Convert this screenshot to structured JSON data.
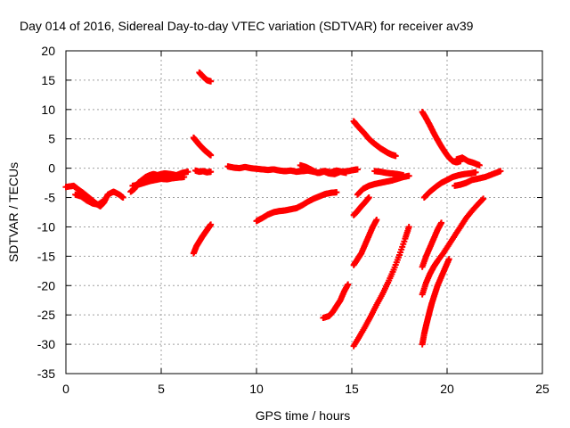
{
  "chart_data": {
    "type": "scatter",
    "title": "Day 014 of 2016, Sidereal Day-to-day VTEC variation (SDTVAR) for receiver av39",
    "xlabel": "GPS time / hours",
    "ylabel": "SDTVAR / TECUs",
    "xlim": [
      0,
      25
    ],
    "ylim": [
      -35,
      20
    ],
    "xticks": [
      0,
      5,
      10,
      15,
      20,
      25
    ],
    "yticks": [
      -35,
      -30,
      -25,
      -20,
      -15,
      -10,
      -5,
      0,
      5,
      10,
      15,
      20
    ],
    "grid": true,
    "marker": "plus",
    "color": "#ff0000",
    "segments": [
      {
        "x": [
          0.0,
          0.4,
          0.6,
          0.9,
          1.2,
          1.5,
          1.8,
          2.0,
          2.2,
          2.5,
          2.8,
          3.0
        ],
        "y": [
          -3.2,
          -3.0,
          -3.5,
          -4.2,
          -5.0,
          -5.8,
          -6.5,
          -5.8,
          -4.5,
          -4.0,
          -4.5,
          -5.0
        ]
      },
      {
        "x": [
          0.5,
          0.8,
          1.1,
          1.4,
          1.7,
          2.0
        ],
        "y": [
          -4.5,
          -4.8,
          -5.5,
          -6.0,
          -6.2,
          -5.5
        ]
      },
      {
        "x": [
          3.4,
          3.6,
          3.8,
          4.0,
          4.2,
          4.4,
          4.6,
          4.8,
          5.0,
          5.2,
          5.5,
          5.8,
          6.1,
          6.4
        ],
        "y": [
          -4.0,
          -3.5,
          -2.5,
          -2.0,
          -1.5,
          -1.2,
          -1.0,
          -1.2,
          -1.0,
          -0.9,
          -1.0,
          -1.2,
          -0.8,
          -0.6
        ]
      },
      {
        "x": [
          3.5,
          3.8,
          4.1,
          4.4,
          4.7,
          5.0,
          5.3,
          5.6,
          5.9,
          6.2
        ],
        "y": [
          -3.0,
          -2.8,
          -2.5,
          -2.2,
          -2.0,
          -1.8,
          -1.9,
          -1.7,
          -1.6,
          -1.5
        ]
      },
      {
        "x": [
          6.7,
          6.85,
          7.0,
          7.15,
          7.3,
          7.45,
          7.6
        ],
        "y": [
          5.2,
          4.6,
          4.0,
          3.5,
          3.0,
          2.6,
          2.2
        ]
      },
      {
        "x": [
          6.8,
          7.0,
          7.2,
          7.4,
          7.6
        ],
        "y": [
          -0.4,
          -0.6,
          -0.5,
          -0.7,
          -0.6
        ]
      },
      {
        "x": [
          6.7,
          6.85,
          7.0,
          7.15,
          7.3,
          7.45,
          7.6
        ],
        "y": [
          -14.5,
          -13.3,
          -12.5,
          -11.7,
          -11.0,
          -10.3,
          -9.6
        ]
      },
      {
        "x": [
          7.0,
          7.2,
          7.4,
          7.6
        ],
        "y": [
          16.3,
          15.6,
          15.0,
          14.8
        ]
      },
      {
        "x": [
          8.5,
          8.8,
          9.1,
          9.4,
          9.7,
          10.0,
          10.3,
          10.6,
          10.9,
          11.2,
          11.5,
          11.8,
          12.1,
          12.4,
          12.7,
          13.0,
          13.3,
          13.6,
          13.9,
          14.2,
          14.5,
          14.8,
          15.1,
          15.3
        ],
        "y": [
          0.3,
          0.1,
          0.0,
          0.2,
          0.0,
          -0.1,
          -0.2,
          -0.3,
          -0.2,
          -0.4,
          -0.5,
          -0.4,
          -0.6,
          -0.5,
          -0.4,
          -0.6,
          -0.8,
          -0.5,
          -0.7,
          -0.4,
          -0.6,
          -0.5,
          -0.3,
          -0.2
        ]
      },
      {
        "x": [
          12.3,
          12.6,
          12.9,
          13.2,
          13.5,
          13.8,
          14.1,
          14.4,
          14.7
        ],
        "y": [
          0.5,
          0.2,
          -0.3,
          -0.8,
          -0.5,
          -0.9,
          -1.0,
          -0.6,
          -0.8
        ]
      },
      {
        "x": [
          10.0,
          10.3,
          10.6,
          10.9,
          11.2,
          11.5,
          11.8,
          12.1,
          12.4,
          12.7,
          13.0,
          13.3,
          13.6,
          13.9,
          14.2
        ],
        "y": [
          -9.0,
          -8.5,
          -7.9,
          -7.5,
          -7.3,
          -7.2,
          -7.0,
          -6.8,
          -6.3,
          -5.7,
          -5.2,
          -4.8,
          -4.4,
          -4.2,
          -4.1
        ]
      },
      {
        "x": [
          13.5,
          13.8,
          14.0,
          14.2,
          14.4,
          14.6,
          14.8
        ],
        "y": [
          -25.5,
          -25.2,
          -24.5,
          -23.5,
          -22.5,
          -21.0,
          -19.8
        ]
      },
      {
        "x": [
          15.1,
          15.3,
          15.5,
          15.7,
          15.9,
          16.1,
          16.3,
          16.5,
          16.7,
          16.9,
          17.1,
          17.3
        ],
        "y": [
          8.0,
          7.2,
          6.5,
          5.8,
          5.0,
          4.4,
          3.9,
          3.4,
          3.0,
          2.6,
          2.3,
          2.1
        ]
      },
      {
        "x": [
          15.3,
          15.6,
          15.9,
          16.2,
          16.5,
          16.8,
          17.1,
          17.4,
          17.7,
          18.0
        ],
        "y": [
          -4.5,
          -3.5,
          -3.0,
          -2.7,
          -2.5,
          -2.3,
          -2.1,
          -1.8,
          -1.5,
          -1.3
        ]
      },
      {
        "x": [
          16.2,
          16.5,
          16.8,
          17.1,
          17.4,
          17.7
        ],
        "y": [
          -0.5,
          -0.6,
          -0.8,
          -0.9,
          -1.0,
          -1.2
        ]
      },
      {
        "x": [
          15.1,
          15.3,
          15.5,
          15.7,
          15.9
        ],
        "y": [
          -8.0,
          -7.3,
          -6.5,
          -5.8,
          -5.0
        ]
      },
      {
        "x": [
          15.1,
          15.3,
          15.5,
          15.7,
          15.9,
          16.1,
          16.3
        ],
        "y": [
          -16.5,
          -15.5,
          -14.5,
          -13.0,
          -11.5,
          -10.0,
          -8.8
        ]
      },
      {
        "x": [
          15.1,
          15.4,
          15.7,
          16.0,
          16.3,
          16.6,
          16.9,
          17.2,
          17.5,
          17.8,
          18.0
        ],
        "y": [
          -30.3,
          -28.7,
          -27.0,
          -25.2,
          -23.3,
          -21.5,
          -19.5,
          -17.3,
          -14.8,
          -12.0,
          -10.0
        ]
      },
      {
        "x": [
          18.7,
          18.9,
          19.1,
          19.3,
          19.5,
          19.7,
          19.9,
          20.1,
          20.3,
          20.5,
          20.7
        ],
        "y": [
          9.6,
          8.5,
          7.3,
          6.0,
          4.8,
          3.7,
          2.7,
          1.8,
          1.2,
          1.0,
          1.2
        ]
      },
      {
        "x": [
          20.5,
          20.8,
          21.1,
          21.4,
          21.7
        ],
        "y": [
          1.5,
          1.8,
          1.2,
          0.9,
          0.5
        ]
      },
      {
        "x": [
          18.8,
          19.1,
          19.4,
          19.7,
          20.0,
          20.3,
          20.6,
          20.9,
          21.2,
          21.5
        ],
        "y": [
          -5.0,
          -4.0,
          -3.2,
          -2.5,
          -2.0,
          -1.5,
          -1.2,
          -1.0,
          -0.9,
          -0.7
        ]
      },
      {
        "x": [
          20.4,
          20.7,
          21.0,
          21.3,
          21.6,
          22.0,
          22.4,
          22.8
        ],
        "y": [
          -3.0,
          -2.8,
          -2.5,
          -2.0,
          -1.8,
          -1.5,
          -1.0,
          -0.5
        ]
      },
      {
        "x": [
          18.7,
          18.9,
          19.1,
          19.3,
          19.5,
          19.7
        ],
        "y": [
          -16.8,
          -15.0,
          -13.5,
          -12.0,
          -10.5,
          -9.3
        ]
      },
      {
        "x": [
          18.7,
          18.9,
          19.1,
          19.3,
          19.5,
          19.8,
          20.1,
          20.4,
          20.7,
          21.0,
          21.3,
          21.6,
          21.9
        ],
        "y": [
          -21.5,
          -19.5,
          -18.0,
          -16.8,
          -15.8,
          -14.5,
          -13.0,
          -11.5,
          -10.0,
          -8.5,
          -7.3,
          -6.2,
          -5.2
        ]
      },
      {
        "x": [
          18.7,
          18.8,
          18.9,
          19.0,
          19.1,
          19.2,
          19.35,
          19.5,
          19.7,
          19.9,
          20.1
        ],
        "y": [
          -30.0,
          -28.2,
          -26.8,
          -25.5,
          -24.2,
          -23.0,
          -21.5,
          -20.0,
          -18.5,
          -17.0,
          -15.5
        ]
      }
    ]
  }
}
